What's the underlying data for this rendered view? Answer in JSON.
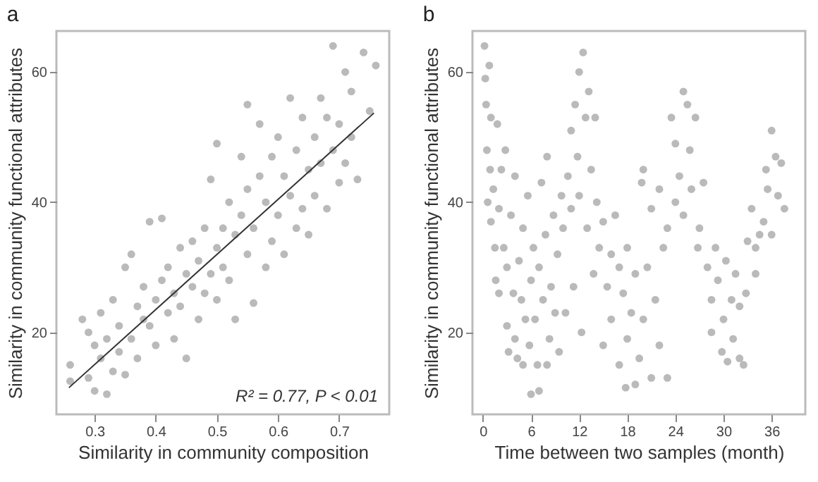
{
  "chart_data": [
    {
      "type": "scatter",
      "title": "a",
      "xlabel": "Similarity in community composition",
      "ylabel": "Similarity in community functional attributes",
      "xlim": [
        0.2375,
        0.782
      ],
      "ylim": [
        7.4,
        66.3
      ],
      "xticks": [
        0.3,
        0.4,
        0.5,
        0.6,
        0.7
      ],
      "yticks": [
        20,
        40,
        60
      ],
      "grid": false,
      "annotations": [
        "R² = 0.77,  P < 0.01"
      ],
      "series": [
        {
          "color": "#8c8c8c",
          "marker": "circle",
          "x": [
            0.26,
            0.26,
            0.28,
            0.29,
            0.29,
            0.3,
            0.3,
            0.31,
            0.31,
            0.32,
            0.32,
            0.33,
            0.33,
            0.34,
            0.34,
            0.35,
            0.35,
            0.36,
            0.36,
            0.37,
            0.37,
            0.38,
            0.38,
            0.39,
            0.39,
            0.4,
            0.4,
            0.41,
            0.41,
            0.42,
            0.42,
            0.43,
            0.43,
            0.44,
            0.44,
            0.45,
            0.45,
            0.46,
            0.46,
            0.47,
            0.47,
            0.48,
            0.48,
            0.49,
            0.49,
            0.5,
            0.5,
            0.5,
            0.51,
            0.51,
            0.52,
            0.52,
            0.53,
            0.53,
            0.54,
            0.54,
            0.55,
            0.55,
            0.55,
            0.56,
            0.56,
            0.57,
            0.57,
            0.58,
            0.58,
            0.59,
            0.59,
            0.6,
            0.6,
            0.61,
            0.61,
            0.62,
            0.62,
            0.63,
            0.63,
            0.64,
            0.64,
            0.65,
            0.65,
            0.66,
            0.66,
            0.67,
            0.67,
            0.68,
            0.68,
            0.69,
            0.69,
            0.7,
            0.7,
            0.71,
            0.71,
            0.72,
            0.72,
            0.73,
            0.74,
            0.75,
            0.76
          ],
          "values": [
            15,
            12.5,
            22,
            13,
            20,
            11,
            18,
            16,
            23,
            10.5,
            19,
            14,
            25,
            17,
            21,
            13.5,
            30,
            32,
            19,
            24,
            16,
            22,
            27,
            21,
            37,
            18,
            25,
            28,
            37.5,
            23,
            30,
            26,
            19,
            33,
            24,
            16,
            29,
            27,
            34,
            22,
            31,
            36,
            26,
            43.5,
            29,
            49,
            33,
            25,
            36,
            30,
            40,
            28,
            35,
            22,
            38,
            47,
            55,
            32,
            42,
            24.5,
            36,
            52,
            44,
            30,
            40,
            47,
            34,
            50,
            38,
            32,
            44,
            56,
            41,
            36,
            48,
            53,
            39,
            45,
            35,
            50,
            41,
            56,
            46,
            39,
            53,
            64,
            48,
            43,
            52,
            60,
            46,
            57,
            50,
            43.5,
            63,
            54,
            61
          ]
        },
        {
          "type": "line",
          "color": "#333333",
          "x": [
            0.258,
            0.757
          ],
          "values": [
            11.5,
            53.7
          ]
        }
      ]
    },
    {
      "type": "scatter",
      "title": "b",
      "xlabel": "Time between two samples (month)",
      "ylabel": "Similarity in community functional attributes",
      "xlim": [
        -1.3,
        40.2
      ],
      "ylim": [
        7.4,
        66.3
      ],
      "xticks": [
        0,
        6,
        12,
        18,
        24,
        30,
        36
      ],
      "yticks": [
        20,
        40,
        60
      ],
      "grid": false,
      "series": [
        {
          "color": "#8c8c8c",
          "marker": "circle",
          "x": [
            0.2,
            0.3,
            0.4,
            0.5,
            0.6,
            0.8,
            0.9,
            1,
            1,
            1.3,
            1.5,
            1.6,
            1.8,
            2,
            2,
            2.3,
            2.6,
            2.8,
            3,
            3,
            3.2,
            3.5,
            3.8,
            4,
            4,
            4.3,
            4.5,
            4.8,
            5,
            5,
            5.3,
            5.6,
            5.8,
            6,
            6,
            6.3,
            6.5,
            6.8,
            7,
            7,
            7.3,
            7.5,
            7.8,
            8,
            8,
            8.3,
            8.5,
            8.8,
            9,
            9.3,
            9.5,
            9.8,
            10,
            10.3,
            10.6,
            11,
            11,
            11.3,
            11.5,
            11.8,
            12,
            12,
            12.3,
            12.5,
            12.8,
            13,
            13.2,
            13.5,
            13.8,
            14,
            14.2,
            14.5,
            15,
            15,
            15.5,
            16,
            16,
            16.5,
            17,
            17,
            17.5,
            17.8,
            18,
            18,
            18.5,
            19,
            19,
            19.5,
            19.8,
            20,
            20,
            20.5,
            21,
            21,
            21.5,
            22,
            22,
            22.5,
            23,
            23,
            23.5,
            24,
            24,
            24.5,
            25,
            25,
            25.5,
            25.8,
            26,
            26.5,
            26.8,
            27,
            27.5,
            28,
            28.5,
            28.5,
            29,
            29.3,
            29.8,
            30,
            30.3,
            30.5,
            31,
            31.2,
            31.5,
            32,
            32,
            32.5,
            32.8,
            33,
            33.5,
            34,
            34,
            34.5,
            35,
            35.3,
            35.5,
            36,
            36,
            36.5,
            36.8,
            37.2,
            37.6
          ],
          "values": [
            64,
            59,
            55,
            48,
            40,
            61,
            45,
            53,
            37,
            42,
            33,
            28,
            52,
            39,
            26,
            45,
            33,
            48,
            21,
            30,
            17,
            38,
            26,
            19,
            44,
            16,
            31,
            25,
            15,
            36,
            22,
            41,
            18,
            10.5,
            28,
            33,
            22,
            15,
            11,
            30,
            43,
            25,
            35,
            15,
            47,
            19,
            27,
            38,
            23,
            32,
            17,
            41,
            36,
            23,
            44,
            51,
            39,
            27,
            55,
            47,
            60,
            41,
            20,
            63,
            53,
            36,
            57,
            45,
            29,
            53,
            40,
            33,
            18,
            37,
            27,
            22,
            32,
            38,
            15,
            30,
            26,
            11.5,
            19,
            33,
            23,
            12,
            29,
            16,
            43,
            22,
            45,
            30,
            13,
            39,
            25,
            42,
            18,
            33,
            13,
            36,
            53,
            40,
            49,
            44,
            57,
            38,
            55,
            48,
            42,
            53,
            33,
            36,
            43,
            30,
            20,
            25,
            33,
            28,
            17,
            22,
            31,
            15.5,
            25,
            19,
            29,
            16,
            24,
            15,
            26,
            34,
            39,
            29,
            33,
            35,
            37,
            45,
            42,
            51,
            35,
            47,
            41,
            46,
            39
          ]
        }
      ]
    }
  ]
}
